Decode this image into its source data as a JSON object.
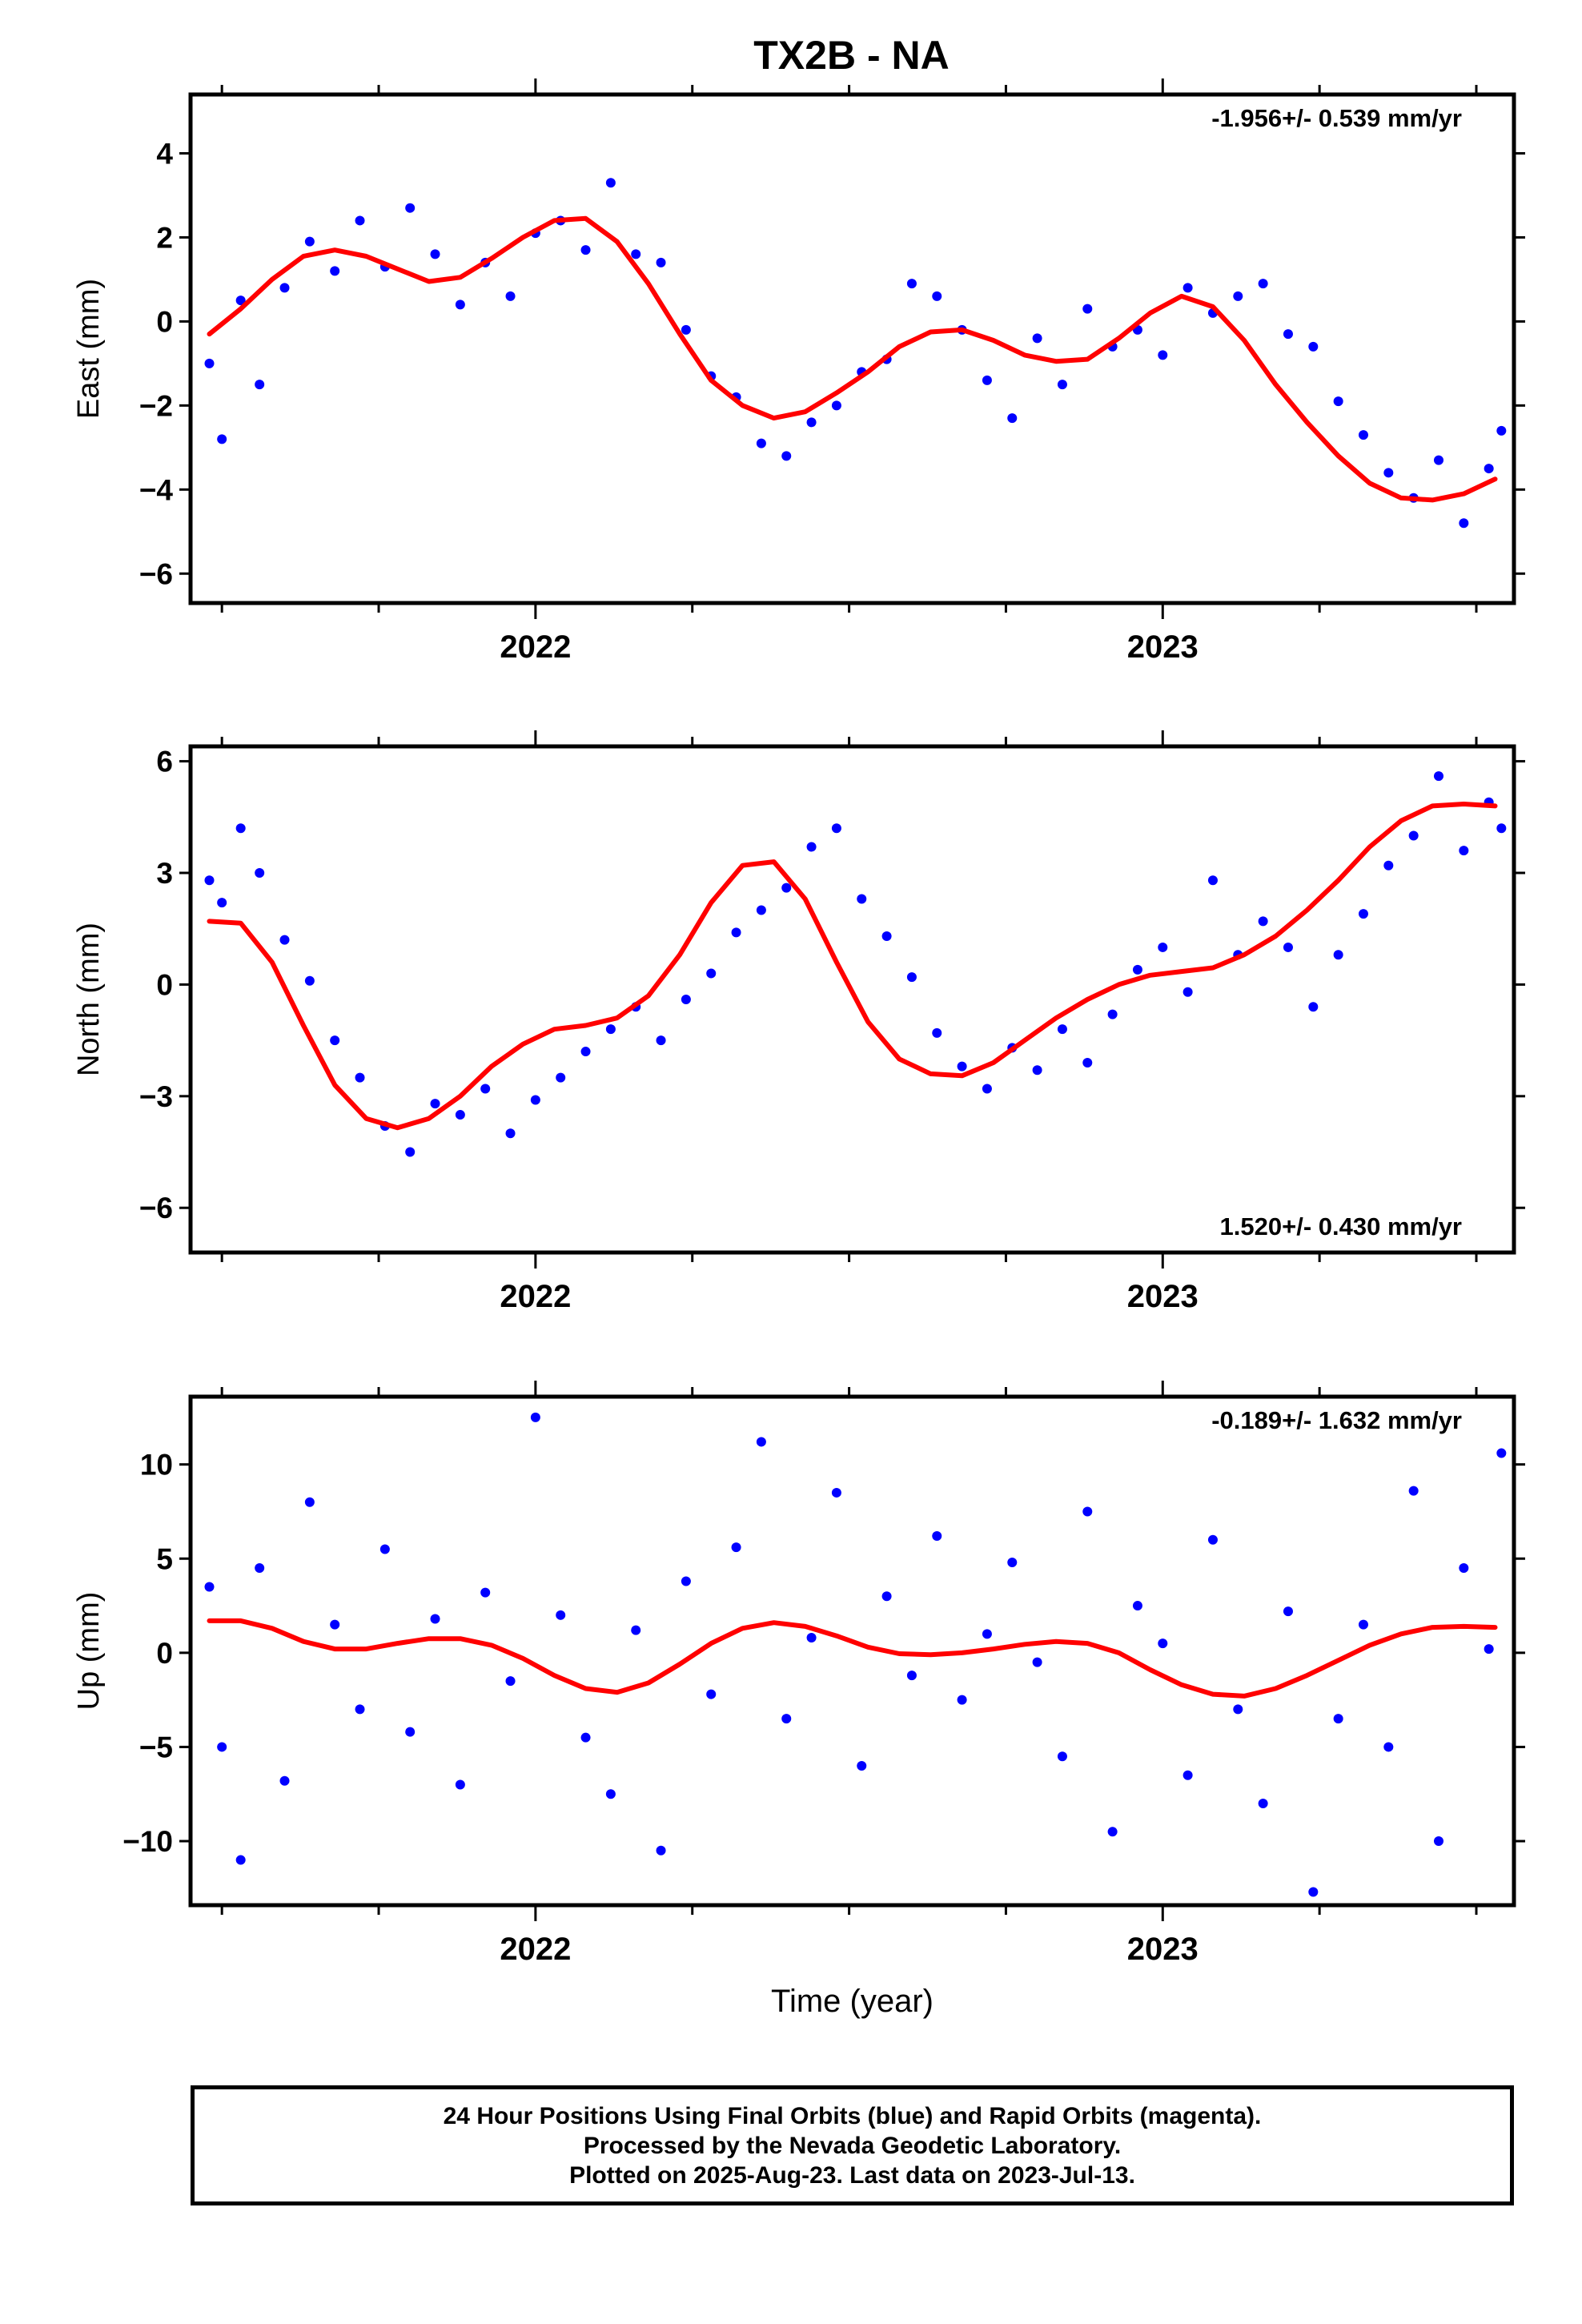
{
  "title": "TX2B - NA",
  "xlabel": "Time (year)",
  "caption": [
    "24 Hour Positions Using Final Orbits (blue) and Rapid Orbits (magenta).",
    "Processed by the Nevada Geodetic Laboratory.",
    "Plotted on 2025-Aug-23. Last data on 2023-Jul-13."
  ],
  "colors": {
    "final_orbit_points": "#0000ff",
    "fit_curve": "#ff0000",
    "frame": "#000000"
  },
  "chart_data": [
    {
      "type": "scatter",
      "panel": "east",
      "ylabel": "East (mm)",
      "rate_label": "-1.956+/- 0.539 mm/yr",
      "rate_label_position": "top-right",
      "xlim": [
        2021.45,
        2023.56
      ],
      "ylim": [
        -6.7,
        5.4
      ],
      "xticks": [
        2022,
        2023
      ],
      "xtick_labels": [
        "2022",
        "2023"
      ],
      "yticks": [
        -6,
        -4,
        -2,
        0,
        2,
        4
      ],
      "ytick_labels": [
        "−6",
        "−4",
        "−2",
        "0",
        "2",
        "4"
      ],
      "series": [
        {
          "kind": "points",
          "x": [
            2021.48,
            2021.5,
            2021.53,
            2021.56,
            2021.6,
            2021.64,
            2021.68,
            2021.72,
            2021.76,
            2021.8,
            2021.84,
            2021.88,
            2021.92,
            2021.96,
            2022.0,
            2022.04,
            2022.08,
            2022.12,
            2022.16,
            2022.2,
            2022.24,
            2022.28,
            2022.32,
            2022.36,
            2022.4,
            2022.44,
            2022.48,
            2022.52,
            2022.56,
            2022.6,
            2022.64,
            2022.68,
            2022.72,
            2022.76,
            2022.8,
            2022.84,
            2022.88,
            2022.92,
            2022.96,
            2023.0,
            2023.04,
            2023.08,
            2023.12,
            2023.16,
            2023.2,
            2023.24,
            2023.28,
            2023.32,
            2023.36,
            2023.4,
            2023.44,
            2023.48,
            2023.52,
            2023.54
          ],
          "y": [
            -1.0,
            -2.8,
            0.5,
            -1.5,
            0.8,
            1.9,
            1.2,
            2.4,
            1.3,
            2.7,
            1.6,
            0.4,
            1.4,
            0.6,
            2.1,
            2.4,
            1.7,
            3.3,
            1.6,
            1.4,
            -0.2,
            -1.3,
            -1.8,
            -2.9,
            -3.2,
            -2.4,
            -2.0,
            -1.2,
            -0.9,
            0.9,
            0.6,
            -0.2,
            -1.4,
            -2.3,
            -0.4,
            -1.5,
            0.3,
            -0.6,
            -0.2,
            -0.8,
            0.8,
            0.2,
            0.6,
            0.9,
            -0.3,
            -0.6,
            -1.9,
            -2.7,
            -3.6,
            -4.2,
            -3.3,
            -4.8,
            -3.5,
            -2.6
          ]
        },
        {
          "kind": "fit",
          "x": [
            2021.48,
            2021.53,
            2021.58,
            2021.63,
            2021.68,
            2021.73,
            2021.78,
            2021.83,
            2021.88,
            2021.93,
            2021.98,
            2022.03,
            2022.08,
            2022.13,
            2022.18,
            2022.23,
            2022.28,
            2022.33,
            2022.38,
            2022.43,
            2022.48,
            2022.53,
            2022.58,
            2022.63,
            2022.68,
            2022.73,
            2022.78,
            2022.83,
            2022.88,
            2022.93,
            2022.98,
            2023.03,
            2023.08,
            2023.13,
            2023.18,
            2023.23,
            2023.28,
            2023.33,
            2023.38,
            2023.43,
            2023.48,
            2023.53
          ],
          "y": [
            -0.3,
            0.3,
            1.0,
            1.55,
            1.7,
            1.55,
            1.25,
            0.95,
            1.05,
            1.5,
            2.0,
            2.4,
            2.45,
            1.9,
            0.9,
            -0.3,
            -1.4,
            -2.0,
            -2.3,
            -2.15,
            -1.7,
            -1.2,
            -0.6,
            -0.25,
            -0.2,
            -0.45,
            -0.8,
            -0.95,
            -0.9,
            -0.4,
            0.2,
            0.6,
            0.35,
            -0.45,
            -1.5,
            -2.4,
            -3.2,
            -3.85,
            -4.2,
            -4.25,
            -4.1,
            -3.75
          ]
        }
      ]
    },
    {
      "type": "scatter",
      "panel": "north",
      "ylabel": "North (mm)",
      "rate_label": "1.520+/- 0.430 mm/yr",
      "rate_label_position": "bottom-right",
      "xlim": [
        2021.45,
        2023.56
      ],
      "ylim": [
        -7.2,
        6.4
      ],
      "xticks": [
        2022,
        2023
      ],
      "xtick_labels": [
        "2022",
        "2023"
      ],
      "yticks": [
        -6,
        -3,
        0,
        3,
        6
      ],
      "ytick_labels": [
        "−6",
        "−3",
        "0",
        "3",
        "6"
      ],
      "series": [
        {
          "kind": "points",
          "x": [
            2021.48,
            2021.5,
            2021.53,
            2021.56,
            2021.6,
            2021.64,
            2021.68,
            2021.72,
            2021.76,
            2021.8,
            2021.84,
            2021.88,
            2021.92,
            2021.96,
            2022.0,
            2022.04,
            2022.08,
            2022.12,
            2022.16,
            2022.2,
            2022.24,
            2022.28,
            2022.32,
            2022.36,
            2022.4,
            2022.44,
            2022.48,
            2022.52,
            2022.56,
            2022.6,
            2022.64,
            2022.68,
            2022.72,
            2022.76,
            2022.8,
            2022.84,
            2022.88,
            2022.92,
            2022.96,
            2023.0,
            2023.04,
            2023.08,
            2023.12,
            2023.16,
            2023.2,
            2023.24,
            2023.28,
            2023.32,
            2023.36,
            2023.4,
            2023.44,
            2023.48,
            2023.52,
            2023.54
          ],
          "y": [
            2.8,
            2.2,
            4.2,
            3.0,
            1.2,
            0.1,
            -1.5,
            -2.5,
            -3.8,
            -4.5,
            -3.2,
            -3.5,
            -2.8,
            -4.0,
            -3.1,
            -2.5,
            -1.8,
            -1.2,
            -0.6,
            -1.5,
            -0.4,
            0.3,
            1.4,
            2.0,
            2.6,
            3.7,
            4.2,
            2.3,
            1.3,
            0.2,
            -1.3,
            -2.2,
            -2.8,
            -1.7,
            -2.3,
            -1.2,
            -2.1,
            -0.8,
            0.4,
            1.0,
            -0.2,
            2.8,
            0.8,
            1.7,
            1.0,
            -0.6,
            0.8,
            1.9,
            3.2,
            4.0,
            5.6,
            3.6,
            4.9,
            4.2
          ]
        },
        {
          "kind": "fit",
          "x": [
            2021.48,
            2021.53,
            2021.58,
            2021.63,
            2021.68,
            2021.73,
            2021.78,
            2021.83,
            2021.88,
            2021.93,
            2021.98,
            2022.03,
            2022.08,
            2022.13,
            2022.18,
            2022.23,
            2022.28,
            2022.33,
            2022.38,
            2022.43,
            2022.48,
            2022.53,
            2022.58,
            2022.63,
            2022.68,
            2022.73,
            2022.78,
            2022.83,
            2022.88,
            2022.93,
            2022.98,
            2023.03,
            2023.08,
            2023.13,
            2023.18,
            2023.23,
            2023.28,
            2023.33,
            2023.38,
            2023.43,
            2023.48,
            2023.53
          ],
          "y": [
            1.7,
            1.65,
            0.6,
            -1.1,
            -2.7,
            -3.6,
            -3.85,
            -3.6,
            -3.0,
            -2.2,
            -1.6,
            -1.2,
            -1.1,
            -0.9,
            -0.3,
            0.8,
            2.2,
            3.2,
            3.3,
            2.3,
            0.6,
            -1.0,
            -2.0,
            -2.4,
            -2.45,
            -2.1,
            -1.5,
            -0.9,
            -0.4,
            0.0,
            0.25,
            0.35,
            0.45,
            0.8,
            1.3,
            2.0,
            2.8,
            3.7,
            4.4,
            4.8,
            4.85,
            4.8
          ]
        }
      ]
    },
    {
      "type": "scatter",
      "panel": "up",
      "ylabel": "Up (mm)",
      "rate_label": "-0.189+/- 1.632 mm/yr",
      "rate_label_position": "top-right",
      "xlim": [
        2021.45,
        2023.56
      ],
      "ylim": [
        -13.4,
        13.6
      ],
      "xticks": [
        2022,
        2023
      ],
      "xtick_labels": [
        "2022",
        "2023"
      ],
      "yticks": [
        -10,
        -5,
        0,
        5,
        10
      ],
      "ytick_labels": [
        "−10",
        "−5",
        "0",
        "5",
        "10"
      ],
      "series": [
        {
          "kind": "points",
          "x": [
            2021.48,
            2021.5,
            2021.53,
            2021.56,
            2021.6,
            2021.64,
            2021.68,
            2021.72,
            2021.76,
            2021.8,
            2021.84,
            2021.88,
            2021.92,
            2021.96,
            2022.0,
            2022.04,
            2022.08,
            2022.12,
            2022.16,
            2022.2,
            2022.24,
            2022.28,
            2022.32,
            2022.36,
            2022.4,
            2022.44,
            2022.48,
            2022.52,
            2022.56,
            2022.6,
            2022.64,
            2022.68,
            2022.72,
            2022.76,
            2022.8,
            2022.84,
            2022.88,
            2022.92,
            2022.96,
            2023.0,
            2023.04,
            2023.08,
            2023.12,
            2023.16,
            2023.2,
            2023.24,
            2023.28,
            2023.32,
            2023.36,
            2023.4,
            2023.44,
            2023.48,
            2023.52,
            2023.54
          ],
          "y": [
            3.5,
            -5.0,
            -11.0,
            4.5,
            -6.8,
            8.0,
            1.5,
            -3.0,
            5.5,
            -4.2,
            1.8,
            -7.0,
            3.2,
            -1.5,
            12.5,
            2.0,
            -4.5,
            -7.5,
            1.2,
            -10.5,
            3.8,
            -2.2,
            5.6,
            11.2,
            -3.5,
            0.8,
            8.5,
            -6.0,
            3.0,
            -1.2,
            6.2,
            -2.5,
            1.0,
            4.8,
            -0.5,
            -5.5,
            7.5,
            -9.5,
            2.5,
            0.5,
            -6.5,
            6.0,
            -3.0,
            -8.0,
            2.2,
            -12.7,
            -3.5,
            1.5,
            -5.0,
            8.6,
            -10.0,
            4.5,
            0.2,
            10.6
          ]
        },
        {
          "kind": "fit",
          "x": [
            2021.48,
            2021.53,
            2021.58,
            2021.63,
            2021.68,
            2021.73,
            2021.78,
            2021.83,
            2021.88,
            2021.93,
            2021.98,
            2022.03,
            2022.08,
            2022.13,
            2022.18,
            2022.23,
            2022.28,
            2022.33,
            2022.38,
            2022.43,
            2022.48,
            2022.53,
            2022.58,
            2022.63,
            2022.68,
            2022.73,
            2022.78,
            2022.83,
            2022.88,
            2022.93,
            2022.98,
            2023.03,
            2023.08,
            2023.13,
            2023.18,
            2023.23,
            2023.28,
            2023.33,
            2023.38,
            2023.43,
            2023.48,
            2023.53
          ],
          "y": [
            1.7,
            1.7,
            1.3,
            0.6,
            0.2,
            0.2,
            0.5,
            0.75,
            0.75,
            0.4,
            -0.3,
            -1.2,
            -1.9,
            -2.1,
            -1.6,
            -0.6,
            0.5,
            1.3,
            1.6,
            1.4,
            0.9,
            0.3,
            -0.05,
            -0.1,
            0.0,
            0.2,
            0.45,
            0.6,
            0.5,
            0.0,
            -0.9,
            -1.7,
            -2.2,
            -2.3,
            -1.9,
            -1.2,
            -0.4,
            0.4,
            1.0,
            1.35,
            1.4,
            1.35
          ]
        }
      ]
    }
  ]
}
